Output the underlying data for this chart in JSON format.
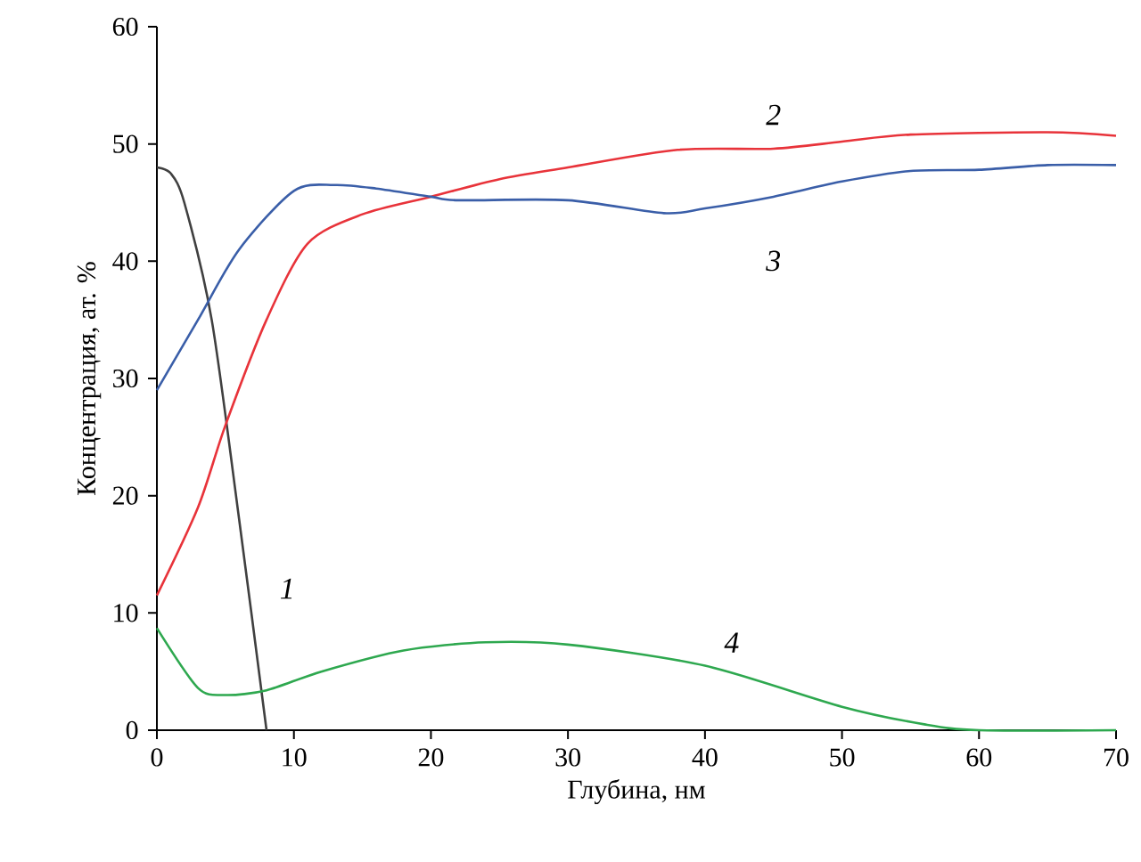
{
  "chart_data": {
    "type": "line",
    "xlabel": "Глубина, нм",
    "ylabel": "Концентрация, ат. %",
    "xlim": [
      0,
      70
    ],
    "ylim": [
      0,
      60
    ],
    "xticks": [
      0,
      10,
      20,
      30,
      40,
      50,
      60,
      70
    ],
    "yticks": [
      0,
      10,
      20,
      30,
      40,
      50,
      60
    ],
    "grid": false,
    "marker": "none",
    "series": [
      {
        "name": "1",
        "color": "#404040",
        "x": [
          0,
          1,
          2,
          4,
          6,
          8
        ],
        "values": [
          48,
          47.5,
          45,
          35,
          18,
          0
        ]
      },
      {
        "name": "2",
        "color": "#e8333a",
        "x": [
          0,
          3,
          5,
          8,
          11,
          15,
          20,
          25,
          30,
          38,
          45,
          50,
          55,
          65,
          70
        ],
        "values": [
          11.5,
          19,
          26,
          35,
          41.5,
          44,
          45.5,
          47,
          48,
          49.5,
          49.6,
          50.2,
          50.8,
          51,
          50.7
        ]
      },
      {
        "name": "3",
        "color": "#3a5ea8",
        "x": [
          0,
          3,
          6,
          10,
          13,
          16,
          20,
          22,
          30,
          37,
          40,
          45,
          50,
          55,
          60,
          65,
          70
        ],
        "values": [
          29,
          35,
          41,
          46,
          46.5,
          46.2,
          45.5,
          45.2,
          45.2,
          44.1,
          44.5,
          45.5,
          46.8,
          47.7,
          47.8,
          48.2,
          48.2
        ]
      },
      {
        "name": "4",
        "color": "#2ea84f",
        "x": [
          0,
          3,
          5,
          8,
          12,
          18,
          24,
          30,
          40,
          50,
          56,
          60,
          70
        ],
        "values": [
          8.7,
          3.6,
          3,
          3.4,
          5,
          6.8,
          7.5,
          7.3,
          5.5,
          2,
          0.5,
          0,
          0
        ]
      }
    ]
  }
}
